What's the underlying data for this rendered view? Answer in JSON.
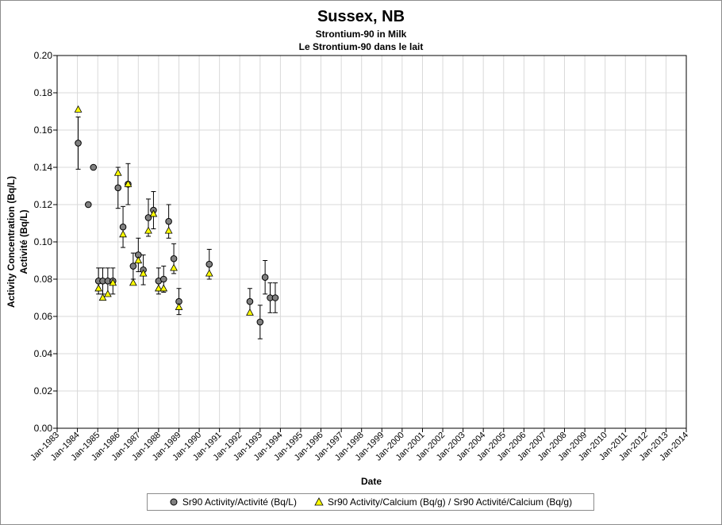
{
  "chart_data": {
    "type": "scatter",
    "title": "Sussex, NB",
    "subtitle": "Strontium-90 in Milk",
    "subtitle2": "Le Strontium-90 dans le lait",
    "xlabel": "Date",
    "ylabel": "Activity Concentration (Bq/L)",
    "ylabel2": "Activité (Bq/L)",
    "ylim": [
      0,
      0.2
    ],
    "yticks": [
      "0.00",
      "0.02",
      "0.04",
      "0.06",
      "0.08",
      "0.10",
      "0.12",
      "0.14",
      "0.16",
      "0.18",
      "0.20"
    ],
    "xlim": [
      "1983-01-01",
      "2014-01-01"
    ],
    "xticks": [
      "Jan-1983",
      "Jan-1984",
      "Jan-1985",
      "Jan-1986",
      "Jan-1987",
      "Jan-1988",
      "Jan-1989",
      "Jan-1990",
      "Jan-1991",
      "Jan-1992",
      "Jan-1993",
      "Jan-1994",
      "Jan-1995",
      "Jan-1996",
      "Jan-1997",
      "Jan-1998",
      "Jan-1999",
      "Jan-2000",
      "Jan-2001",
      "Jan-2002",
      "Jan-2003",
      "Jan-2004",
      "Jan-2005",
      "Jan-2006",
      "Jan-2007",
      "Jan-2008",
      "Jan-2009",
      "Jan-2010",
      "Jan-2011",
      "Jan-2012",
      "Jan-2013",
      "Jan-2014"
    ],
    "grid": true,
    "legend_position": "bottom",
    "series": [
      {
        "name": "Sr90 Activity/Activité (Bq/L)",
        "marker": "circle",
        "color": "#808080",
        "points": [
          {
            "x": "1984-01-15",
            "y": 0.153,
            "err": 0.014
          },
          {
            "x": "1984-07-15",
            "y": 0.12
          },
          {
            "x": "1984-10-15",
            "y": 0.14
          },
          {
            "x": "1985-01-15",
            "y": 0.079,
            "err": 0.007
          },
          {
            "x": "1985-04-01",
            "y": 0.079,
            "err": 0.007
          },
          {
            "x": "1985-07-01",
            "y": 0.079,
            "err": 0.007
          },
          {
            "x": "1985-10-01",
            "y": 0.079,
            "err": 0.007
          },
          {
            "x": "1986-01-01",
            "y": 0.129,
            "err": 0.011
          },
          {
            "x": "1986-04-01",
            "y": 0.108,
            "err": 0.011
          },
          {
            "x": "1986-07-01",
            "y": 0.131,
            "err": 0.011
          },
          {
            "x": "1986-10-01",
            "y": 0.087,
            "err": 0.007
          },
          {
            "x": "1987-01-01",
            "y": 0.093,
            "err": 0.009
          },
          {
            "x": "1987-04-01",
            "y": 0.085,
            "err": 0.008
          },
          {
            "x": "1987-07-01",
            "y": 0.113,
            "err": 0.01
          },
          {
            "x": "1987-10-01",
            "y": 0.117,
            "err": 0.01
          },
          {
            "x": "1988-01-01",
            "y": 0.079,
            "err": 0.007
          },
          {
            "x": "1988-04-01",
            "y": 0.08,
            "err": 0.007
          },
          {
            "x": "1988-07-01",
            "y": 0.111,
            "err": 0.009
          },
          {
            "x": "1988-10-01",
            "y": 0.091,
            "err": 0.008
          },
          {
            "x": "1989-01-01",
            "y": 0.068,
            "err": 0.007
          },
          {
            "x": "1990-07-01",
            "y": 0.088,
            "err": 0.008
          },
          {
            "x": "1992-07-01",
            "y": 0.068,
            "err": 0.007
          },
          {
            "x": "1993-01-01",
            "y": 0.057,
            "err": 0.009
          },
          {
            "x": "1993-04-01",
            "y": 0.081,
            "err": 0.009
          },
          {
            "x": "1993-07-01",
            "y": 0.07,
            "err": 0.008
          },
          {
            "x": "1993-10-01",
            "y": 0.07,
            "err": 0.008
          }
        ]
      },
      {
        "name": "Sr90 Activity/Calcium (Bq/g) / Sr90 Activité/Calcium (Bq/g)",
        "marker": "triangle",
        "color": "#ffff00",
        "points": [
          {
            "x": "1984-01-15",
            "y": 0.171
          },
          {
            "x": "1985-01-15",
            "y": 0.075
          },
          {
            "x": "1985-04-01",
            "y": 0.07
          },
          {
            "x": "1985-07-01",
            "y": 0.072
          },
          {
            "x": "1985-10-01",
            "y": 0.078
          },
          {
            "x": "1986-01-01",
            "y": 0.137
          },
          {
            "x": "1986-04-01",
            "y": 0.104
          },
          {
            "x": "1986-07-01",
            "y": 0.131
          },
          {
            "x": "1986-10-01",
            "y": 0.078
          },
          {
            "x": "1987-01-01",
            "y": 0.09
          },
          {
            "x": "1987-04-01",
            "y": 0.083
          },
          {
            "x": "1987-07-01",
            "y": 0.106
          },
          {
            "x": "1987-10-01",
            "y": 0.115
          },
          {
            "x": "1988-01-01",
            "y": 0.075
          },
          {
            "x": "1988-04-01",
            "y": 0.075
          },
          {
            "x": "1988-07-01",
            "y": 0.106
          },
          {
            "x": "1988-10-01",
            "y": 0.086
          },
          {
            "x": "1989-01-01",
            "y": 0.065
          },
          {
            "x": "1990-07-01",
            "y": 0.083
          },
          {
            "x": "1992-07-01",
            "y": 0.062
          }
        ]
      }
    ]
  }
}
